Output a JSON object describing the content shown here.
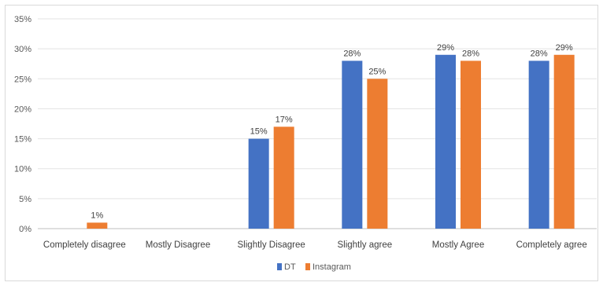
{
  "chart_data": {
    "type": "bar",
    "categories": [
      "Completely disagree",
      "Mostly Disagree",
      "Slightly Disagree",
      "Slightly agree",
      "Mostly Agree",
      "Completely agree"
    ],
    "series": [
      {
        "name": "DT",
        "color": "#4472c4",
        "values": [
          null,
          null,
          15,
          28,
          29,
          28
        ],
        "labels": [
          "",
          "",
          "15%",
          "28%",
          "29%",
          "28%"
        ]
      },
      {
        "name": "Instagram",
        "color": "#ed7d31",
        "values": [
          1,
          null,
          17,
          25,
          28,
          29
        ],
        "labels": [
          "1%",
          "",
          "17%",
          "25%",
          "28%",
          "29%"
        ]
      }
    ],
    "ylim": [
      0,
      35
    ],
    "yticks": [
      "0%",
      "5%",
      "10%",
      "15%",
      "20%",
      "25%",
      "30%",
      "35%"
    ],
    "ytick_values": [
      0,
      5,
      10,
      15,
      20,
      25,
      30,
      35
    ],
    "grid": true,
    "legend": "bottom-center",
    "title": "",
    "xlabel": "",
    "ylabel": ""
  }
}
